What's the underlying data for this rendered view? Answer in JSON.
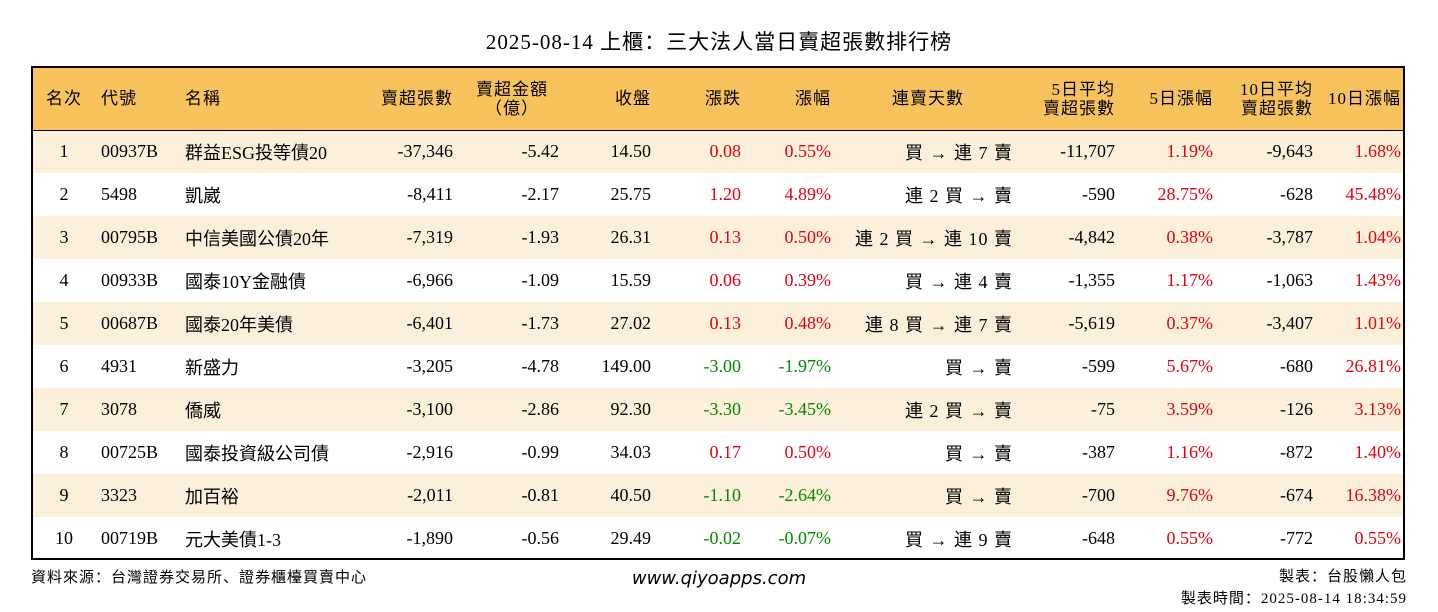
{
  "title": "2025-08-14 上櫃：三大法人當日賣超張數排行榜",
  "headers": {
    "rank": "名次",
    "code": "代號",
    "name": "名稱",
    "sell_shares": "賣超張數",
    "sell_amount_1": "賣超金額",
    "sell_amount_2": "（億）",
    "close": "收盤",
    "change": "漲跌",
    "change_pct": "漲幅",
    "streak": "連賣天數",
    "avg5_1": "5日平均",
    "avg5_2": "賣超張數",
    "pct5": "5日漲幅",
    "avg10_1": "10日平均",
    "avg10_2": "賣超張數",
    "pct10": "10日漲幅"
  },
  "rows": [
    {
      "rank": "1",
      "code": "00937B",
      "name": "群益ESG投等債20",
      "shares": "-37,346",
      "amount": "-5.42",
      "close": "14.50",
      "change": "0.08",
      "change_pct": "0.55%",
      "trend": "up",
      "streak": "買 → 連 7 賣",
      "avg5": "-11,707",
      "pct5": "1.19%",
      "avg10": "-9,643",
      "pct10": "1.68%"
    },
    {
      "rank": "2",
      "code": "5498",
      "name": "凱崴",
      "shares": "-8,411",
      "amount": "-2.17",
      "close": "25.75",
      "change": "1.20",
      "change_pct": "4.89%",
      "trend": "up",
      "streak": "連 2 買 → 賣",
      "avg5": "-590",
      "pct5": "28.75%",
      "avg10": "-628",
      "pct10": "45.48%"
    },
    {
      "rank": "3",
      "code": "00795B",
      "name": "中信美國公債20年",
      "shares": "-7,319",
      "amount": "-1.93",
      "close": "26.31",
      "change": "0.13",
      "change_pct": "0.50%",
      "trend": "up",
      "streak": "連 2 買 → 連 10 賣",
      "avg5": "-4,842",
      "pct5": "0.38%",
      "avg10": "-3,787",
      "pct10": "1.04%"
    },
    {
      "rank": "4",
      "code": "00933B",
      "name": "國泰10Y金融債",
      "shares": "-6,966",
      "amount": "-1.09",
      "close": "15.59",
      "change": "0.06",
      "change_pct": "0.39%",
      "trend": "up",
      "streak": "買 → 連 4 賣",
      "avg5": "-1,355",
      "pct5": "1.17%",
      "avg10": "-1,063",
      "pct10": "1.43%"
    },
    {
      "rank": "5",
      "code": "00687B",
      "name": "國泰20年美債",
      "shares": "-6,401",
      "amount": "-1.73",
      "close": "27.02",
      "change": "0.13",
      "change_pct": "0.48%",
      "trend": "up",
      "streak": "連 8 買 → 連 7 賣",
      "avg5": "-5,619",
      "pct5": "0.37%",
      "avg10": "-3,407",
      "pct10": "1.01%"
    },
    {
      "rank": "6",
      "code": "4931",
      "name": "新盛力",
      "shares": "-3,205",
      "amount": "-4.78",
      "close": "149.00",
      "change": "-3.00",
      "change_pct": "-1.97%",
      "trend": "down",
      "streak": "買 → 賣",
      "avg5": "-599",
      "pct5": "5.67%",
      "avg10": "-680",
      "pct10": "26.81%"
    },
    {
      "rank": "7",
      "code": "3078",
      "name": "僑威",
      "shares": "-3,100",
      "amount": "-2.86",
      "close": "92.30",
      "change": "-3.30",
      "change_pct": "-3.45%",
      "trend": "down",
      "streak": "連 2 買 → 賣",
      "avg5": "-75",
      "pct5": "3.59%",
      "avg10": "-126",
      "pct10": "3.13%"
    },
    {
      "rank": "8",
      "code": "00725B",
      "name": "國泰投資級公司債",
      "shares": "-2,916",
      "amount": "-0.99",
      "close": "34.03",
      "change": "0.17",
      "change_pct": "0.50%",
      "trend": "up",
      "streak": "買 → 賣",
      "avg5": "-387",
      "pct5": "1.16%",
      "avg10": "-872",
      "pct10": "1.40%"
    },
    {
      "rank": "9",
      "code": "3323",
      "name": "加百裕",
      "shares": "-2,011",
      "amount": "-0.81",
      "close": "40.50",
      "change": "-1.10",
      "change_pct": "-2.64%",
      "trend": "down",
      "streak": "買 → 賣",
      "avg5": "-700",
      "pct5": "9.76%",
      "avg10": "-674",
      "pct10": "16.38%"
    },
    {
      "rank": "10",
      "code": "00719B",
      "name": "元大美債1-3",
      "shares": "-1,890",
      "amount": "-0.56",
      "close": "29.49",
      "change": "-0.02",
      "change_pct": "-0.07%",
      "trend": "down",
      "streak": "買 → 連 9 賣",
      "avg5": "-648",
      "pct5": "0.55%",
      "avg10": "-772",
      "pct10": "0.55%"
    }
  ],
  "footer": {
    "source": "資料來源：台灣證券交易所、證券櫃檯買賣中心",
    "website": "www.qiyoapps.com",
    "author": "製表：台股懶人包",
    "timestamp": "製表時間：2025-08-14 18:34:59"
  },
  "colors": {
    "header_bg": "#f8c25c",
    "odd_row_bg": "#fdf0da",
    "up": "#e60012",
    "down": "#008a00"
  }
}
